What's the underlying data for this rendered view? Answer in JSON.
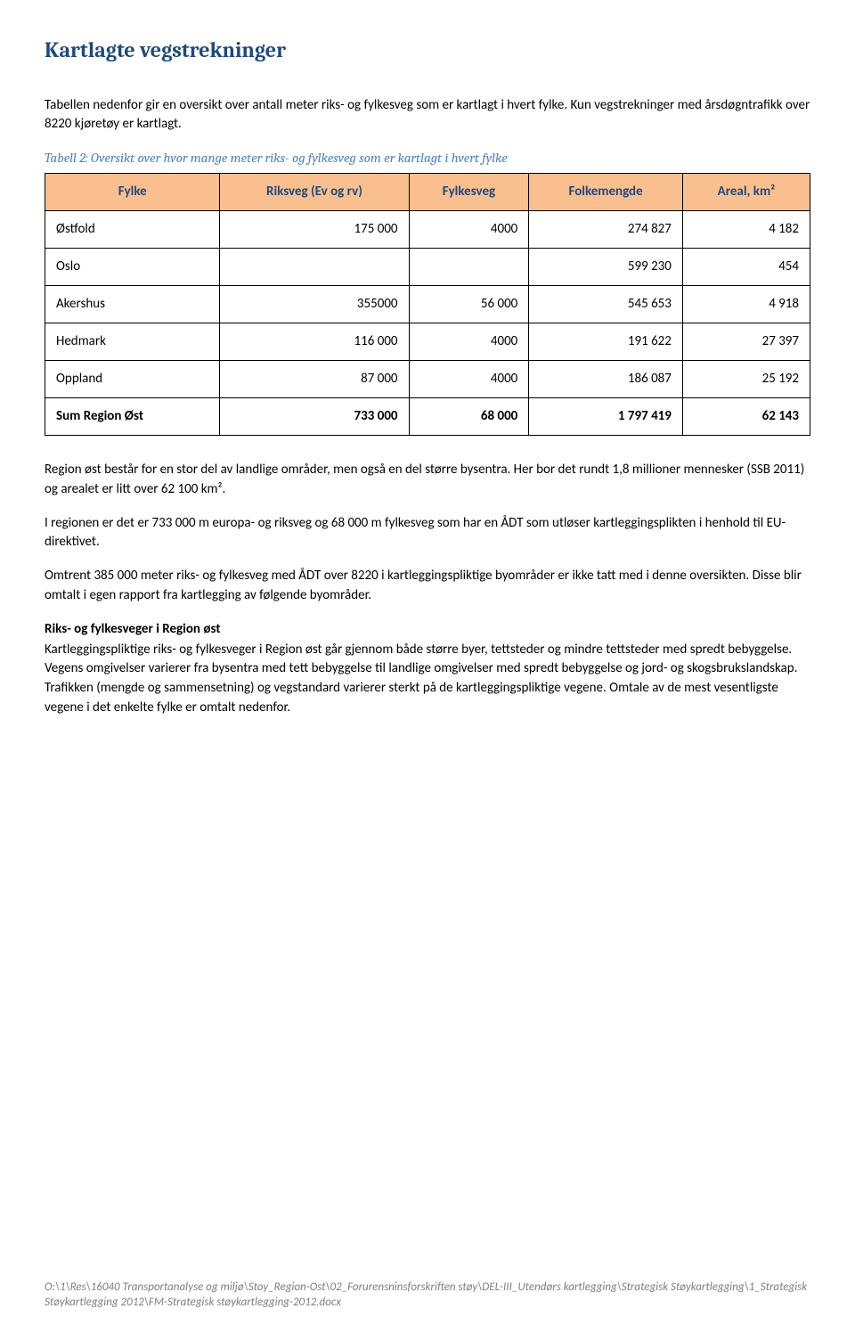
{
  "title": "Kartlagte vegstrekninger",
  "intro": "Tabellen nedenfor gir en oversikt over antall meter riks- og fylkesveg som er kartlagt i hvert fylke. Kun vegstrekninger med årsdøgntrafikk over 8220 kjøretøy er kartlagt.",
  "caption": "Tabell 2: Oversikt over hvor mange meter riks- og fylkesveg som er kartlagt i hvert fylke",
  "table": {
    "header_bg": "#fabf8f",
    "header_color": "#1f497d",
    "columns": [
      "Fylke",
      "Riksveg (Ev og rv)",
      "Fylkesveg",
      "Folkemengde",
      "Areal, km²"
    ],
    "rows": [
      {
        "fylke": "Østfold",
        "riksveg": "175 000",
        "fylkesveg": "4000",
        "folkemengde": "274 827",
        "areal": "4 182"
      },
      {
        "fylke": "Oslo",
        "riksveg": "",
        "fylkesveg": "",
        "folkemengde": "599 230",
        "areal": "454"
      },
      {
        "fylke": "Akershus",
        "riksveg": "355000",
        "fylkesveg": "56 000",
        "folkemengde": "545 653",
        "areal": "4 918"
      },
      {
        "fylke": "Hedmark",
        "riksveg": "116 000",
        "fylkesveg": "4000",
        "folkemengde": "191 622",
        "areal": "27 397"
      },
      {
        "fylke": "Oppland",
        "riksveg": "87 000",
        "fylkesveg": "4000",
        "folkemengde": "186 087",
        "areal": "25 192"
      }
    ],
    "sumrow": {
      "fylke": "Sum Region Øst",
      "riksveg": "733 000",
      "fylkesveg": "68 000",
      "folkemengde": "1 797 419",
      "areal": "62 143"
    }
  },
  "para1": "Region øst består for en stor del av landlige områder, men også en del større bysentra. Her bor det rundt 1,8 millioner mennesker (SSB 2011) og arealet er litt over 62 100 km².",
  "para2": "I regionen er det er 733 000 m europa- og riksveg og 68 000 m fylkesveg som har en ÅDT som utløser kartleggingsplikten i henhold til EU-direktivet.",
  "para3": "Omtrent 385 000 meter riks- og fylkesveg med ÅDT over 8220 i kartleggingspliktige byområder er ikke tatt med i denne oversikten. Disse blir omtalt i egen rapport fra kartlegging av følgende byområder.",
  "subhead": "Riks- og fylkesveger i Region øst",
  "para4": "Kartleggingspliktige riks- og fylkesveger i Region øst går gjennom både større byer, tettsteder og mindre tettsteder med spredt bebyggelse. Vegens omgivelser varierer fra bysentra med tett bebyggelse til landlige omgivelser med spredt bebyggelse og jord- og skogsbrukslandskap. Trafikken (mengde og sammensetning) og vegstandard varierer sterkt på de kartleggingspliktige vegene. Omtale av de mest vesentligste vegene i det enkelte fylke er omtalt nedenfor.",
  "footer": "O:\\1\\Res\\16040 Transportanalyse og miljø\\Stoy_Region-Ost\\02_Forurensninsforskriften støy\\DEL-III_Utendørs kartlegging\\Strategisk Støykartlegging\\1_Strategisk Støykartlegging 2012\\FM-Strategisk støykartlegging-2012.docx"
}
